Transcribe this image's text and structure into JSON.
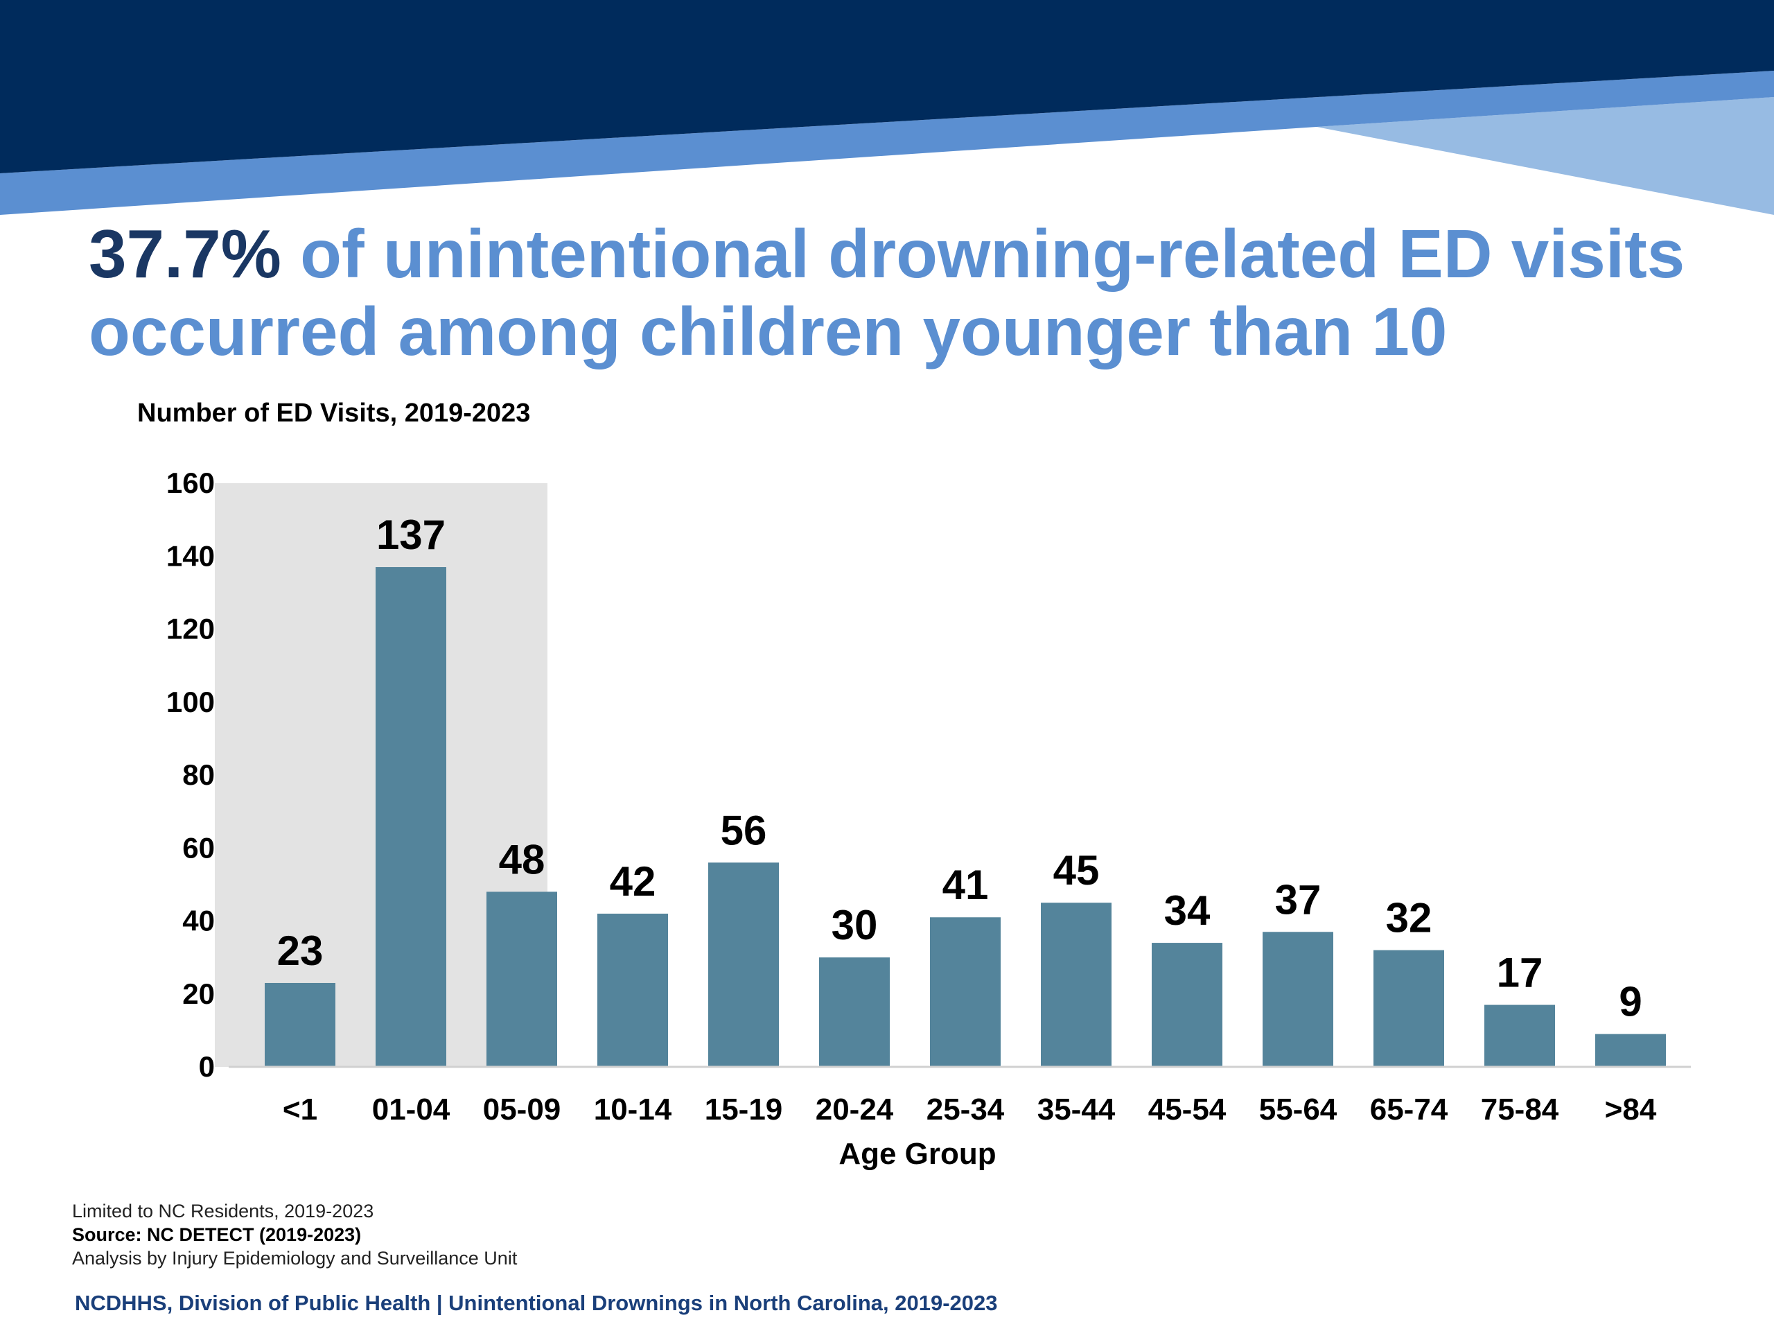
{
  "title": {
    "emphasis": "37.7%",
    "rest_line1": " of unintentional drowning-related ED visits",
    "line2": "occurred among children younger than 10"
  },
  "colors": {
    "navy": "#002b5c",
    "mid_blue": "#5b8fd1",
    "light_blue": "#97bbe3",
    "bar": "#54849b",
    "highlight": "#e3e3e3"
  },
  "chart_data": {
    "type": "bar",
    "ylabel": "Number of ED Visits, 2019-2023",
    "xlabel": "Age Group",
    "ylim": [
      0,
      160
    ],
    "yticks": [
      "0",
      "20",
      "40",
      "60",
      "80",
      "100",
      "120",
      "140",
      "160"
    ],
    "categories": [
      "<1",
      "01-04",
      "05-09",
      "10-14",
      "15-19",
      "20-24",
      "25-34",
      "35-44",
      "45-54",
      "55-64",
      "65-74",
      "75-84",
      ">84"
    ],
    "values": [
      23,
      137,
      48,
      42,
      56,
      30,
      41,
      45,
      34,
      37,
      32,
      17,
      9
    ],
    "highlighted_categories": [
      "<1",
      "01-04",
      "05-09"
    ],
    "grid": false
  },
  "footer": {
    "line1": "Limited to NC Residents, 2019-2023",
    "line2": "Source: NC DETECT (2019-2023)",
    "line3": "Analysis by Injury Epidemiology and Surveillance Unit",
    "title": "NCDHHS, Division of Public Health | Unintentional Drownings in North Carolina, 2019-2023"
  }
}
